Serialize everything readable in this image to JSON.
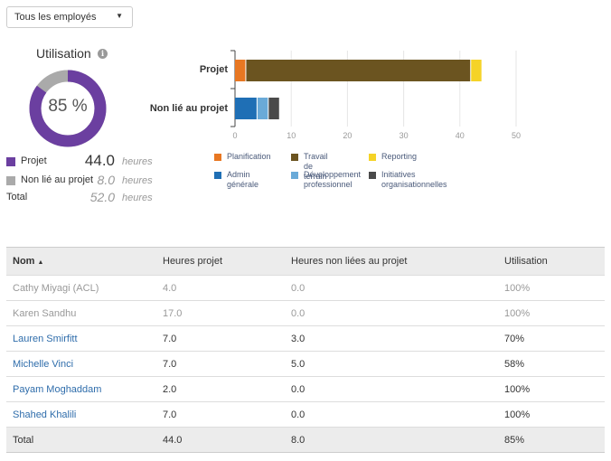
{
  "filter": {
    "selected": "Tous les employés"
  },
  "utilisation": {
    "title": "Utilisation",
    "percent": 85,
    "percent_label": "85 %",
    "legend": [
      {
        "label": "Projet",
        "value": "44.0",
        "unit": "heures",
        "color": "#6b3fa0"
      },
      {
        "label": "Non lié au projet",
        "value": "8.0",
        "unit": "heures",
        "color": "#aaaaaa"
      },
      {
        "label": "Total",
        "value": "52.0",
        "unit": "heures"
      }
    ]
  },
  "chart_data": {
    "type": "bar",
    "orientation": "horizontal",
    "stacked": true,
    "categories": [
      "Projet",
      "Non lié au projet"
    ],
    "series": [
      {
        "name": "Planification",
        "color": "#e87722",
        "values": [
          2,
          0
        ]
      },
      {
        "name": "Travail de terrain",
        "color": "#6b5420",
        "values": [
          40,
          0
        ]
      },
      {
        "name": "Reporting",
        "color": "#f5d327",
        "values": [
          2,
          0
        ]
      },
      {
        "name": "Admin générale",
        "color": "#1f6fb5",
        "values": [
          0,
          4
        ]
      },
      {
        "name": "Développement professionnel",
        "color": "#6aaad8",
        "values": [
          0,
          2
        ]
      },
      {
        "name": "Initiatives organisationnelles",
        "color": "#4a4a4a",
        "values": [
          0,
          2
        ]
      }
    ],
    "xlim": [
      0,
      50
    ],
    "xticks": [
      "0",
      "10",
      "20",
      "30",
      "40",
      "50"
    ],
    "grid": true,
    "legend_placement": "bottom"
  },
  "legend_labels": [
    [
      "Planification"
    ],
    [
      "Travail de terrain"
    ],
    [
      "Reporting"
    ],
    [
      "Admin générale"
    ],
    [
      "Développement",
      "professionnel"
    ],
    [
      "Initiatives",
      "organisationnelles"
    ]
  ],
  "table": {
    "headers": [
      "Nom",
      "Heures projet",
      "Heures non liées au projet",
      "Utilisation"
    ],
    "rows": [
      {
        "name": "Cathy Miyagi (ACL)",
        "project": "4.0",
        "non_project": "0.0",
        "util": "100%",
        "muted": true
      },
      {
        "name": "Karen Sandhu",
        "project": "17.0",
        "non_project": "0.0",
        "util": "100%",
        "muted": true
      },
      {
        "name": "Lauren Smirfitt",
        "project": "7.0",
        "non_project": "3.0",
        "util": "70%",
        "muted": false
      },
      {
        "name": "Michelle Vinci",
        "project": "7.0",
        "non_project": "5.0",
        "util": "58%",
        "muted": false
      },
      {
        "name": "Payam Moghaddam",
        "project": "2.0",
        "non_project": "0.0",
        "util": "100%",
        "muted": false
      },
      {
        "name": "Shahed Khalili",
        "project": "7.0",
        "non_project": "0.0",
        "util": "100%",
        "muted": false
      }
    ],
    "total": {
      "name": "Total",
      "project": "44.0",
      "non_project": "8.0",
      "util": "85%"
    }
  }
}
